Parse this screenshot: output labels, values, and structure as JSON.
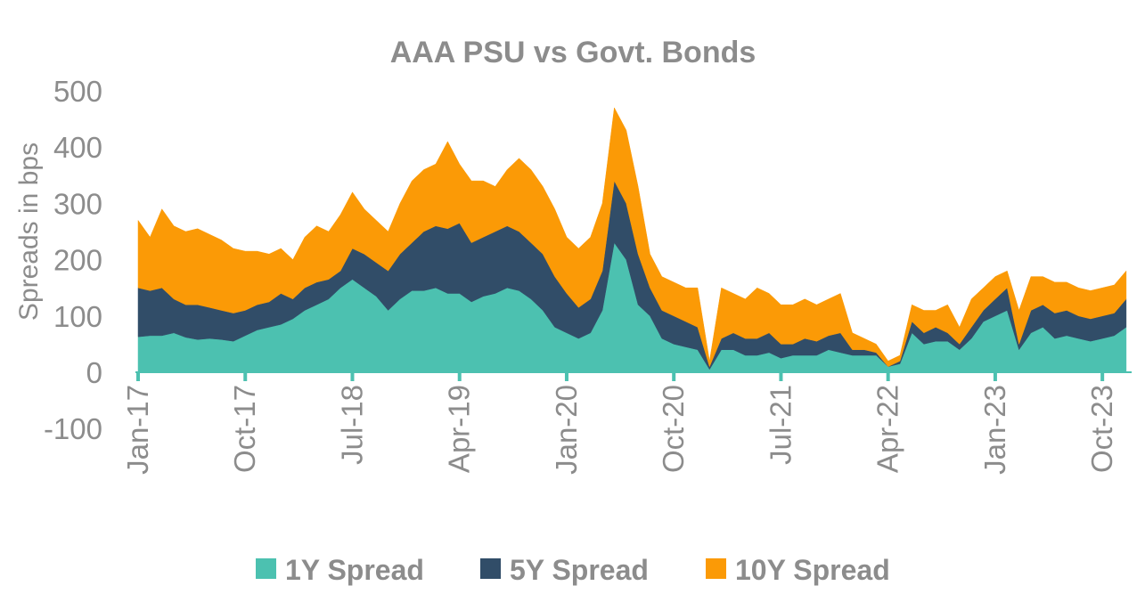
{
  "chart_data": {
    "type": "area",
    "stacked": true,
    "title": "AAA PSU vs Govt. Bonds",
    "xlabel": "",
    "ylabel": "Spreads in bps",
    "ylim": [
      -100,
      500
    ],
    "yticks": [
      "-100",
      "0",
      "100",
      "200",
      "300",
      "400",
      "500"
    ],
    "x_start": "Jan-17",
    "x_end": "Dec-23",
    "frequency": "monthly",
    "xticks": [
      "Jan-17",
      "Oct-17",
      "Jul-18",
      "Apr-19",
      "Jan-20",
      "Oct-20",
      "Jul-21",
      "Apr-22",
      "Jan-23",
      "Oct-23"
    ],
    "grid": false,
    "legend_position": "bottom",
    "series": [
      {
        "name": "1Y Spread",
        "color": "#4cc1b0",
        "values": [
          63,
          65,
          65,
          70,
          62,
          58,
          60,
          58,
          55,
          65,
          75,
          80,
          85,
          95,
          110,
          120,
          130,
          150,
          165,
          150,
          135,
          110,
          130,
          145,
          145,
          150,
          140,
          140,
          125,
          135,
          140,
          150,
          145,
          130,
          110,
          80,
          70,
          60,
          70,
          110,
          230,
          200,
          120,
          100,
          60,
          50,
          45,
          40,
          5,
          40,
          40,
          30,
          30,
          35,
          25,
          30,
          30,
          30,
          40,
          35,
          30,
          30,
          30,
          10,
          15,
          70,
          50,
          55,
          55,
          40,
          60,
          90,
          100,
          110,
          40,
          70,
          80,
          60,
          65,
          60,
          55,
          60,
          65,
          80
        ]
      },
      {
        "name": "5Y Spread",
        "color": "#314d68",
        "values": [
          87,
          80,
          85,
          60,
          58,
          62,
          55,
          52,
          50,
          45,
          45,
          45,
          55,
          35,
          40,
          40,
          35,
          30,
          55,
          60,
          60,
          70,
          80,
          85,
          105,
          110,
          115,
          125,
          105,
          105,
          110,
          110,
          105,
          100,
          100,
          90,
          70,
          55,
          60,
          70,
          110,
          100,
          90,
          50,
          50,
          50,
          45,
          40,
          5,
          20,
          30,
          30,
          30,
          35,
          25,
          20,
          30,
          25,
          25,
          35,
          10,
          10,
          5,
          0,
          5,
          20,
          20,
          25,
          15,
          10,
          20,
          20,
          30,
          40,
          10,
          40,
          40,
          45,
          45,
          40,
          40,
          40,
          40,
          50
        ]
      },
      {
        "name": "10Y Spread",
        "color": "#fb9a06",
        "values": [
          120,
          95,
          140,
          130,
          130,
          135,
          130,
          125,
          115,
          105,
          95,
          85,
          80,
          70,
          90,
          100,
          85,
          100,
          100,
          80,
          75,
          70,
          90,
          110,
          110,
          110,
          155,
          105,
          110,
          100,
          80,
          100,
          130,
          130,
          120,
          120,
          100,
          105,
          110,
          120,
          130,
          130,
          120,
          60,
          60,
          60,
          60,
          70,
          10,
          90,
          70,
          70,
          90,
          70,
          70,
          70,
          70,
          65,
          65,
          70,
          30,
          20,
          15,
          10,
          10,
          30,
          40,
          30,
          50,
          30,
          50,
          40,
          40,
          30,
          60,
          60,
          50,
          55,
          50,
          50,
          50,
          50,
          50,
          50
        ]
      }
    ]
  }
}
